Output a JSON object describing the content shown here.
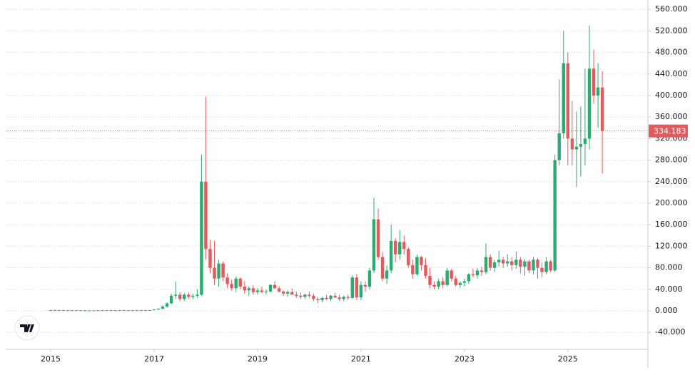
{
  "chart_data": {
    "type": "candlestick",
    "categories": [
      "2015",
      null,
      null,
      null,
      null,
      null,
      null,
      null,
      null,
      null,
      null,
      null,
      null,
      null,
      null,
      null,
      null,
      null,
      null,
      null,
      null,
      null,
      null,
      null,
      "2017",
      null,
      null,
      null,
      null,
      null,
      null,
      null,
      null,
      null,
      null,
      null,
      null,
      null,
      null,
      null,
      null,
      null,
      null,
      null,
      null,
      null,
      null,
      null,
      "2019",
      null,
      null,
      null,
      null,
      null,
      null,
      null,
      null,
      null,
      null,
      null,
      null,
      null,
      null,
      null,
      null,
      null,
      null,
      null,
      null,
      null,
      null,
      null,
      "2021",
      null,
      null,
      null,
      null,
      null,
      null,
      null,
      null,
      null,
      null,
      null,
      null,
      null,
      null,
      null,
      null,
      null,
      null,
      null,
      null,
      null,
      null,
      null,
      "2023",
      null,
      null,
      null,
      null,
      null,
      null,
      null,
      null,
      null,
      null,
      null,
      null,
      null,
      null,
      null,
      null,
      null,
      null,
      null,
      null,
      null,
      null,
      null,
      "2025",
      null,
      null,
      null,
      null,
      null,
      null,
      null,
      null
    ],
    "values": [
      [
        1,
        2,
        0.5,
        1.2
      ],
      [
        1.2,
        2,
        0.8,
        1
      ],
      [
        1,
        1.8,
        0.6,
        1.3
      ],
      [
        1.3,
        2,
        0.9,
        1
      ],
      [
        1,
        1.5,
        0.5,
        0.8
      ],
      [
        0.8,
        1.5,
        0.4,
        1
      ],
      [
        1,
        1.6,
        0.5,
        0.7
      ],
      [
        0.7,
        1.2,
        0.3,
        0.9
      ],
      [
        0.9,
        1.4,
        0.5,
        0.6
      ],
      [
        0.6,
        1.2,
        0.3,
        0.8
      ],
      [
        0.8,
        1.3,
        0.4,
        0.7
      ],
      [
        0.7,
        1.2,
        0.3,
        1
      ],
      [
        1,
        1.5,
        0.5,
        0.8
      ],
      [
        0.8,
        1.3,
        0.4,
        1.1
      ],
      [
        1.1,
        1.6,
        0.6,
        0.9
      ],
      [
        0.9,
        1.4,
        0.5,
        1
      ],
      [
        1,
        1.6,
        0.6,
        1.2
      ],
      [
        1.2,
        1.8,
        0.7,
        1
      ],
      [
        1,
        1.5,
        0.6,
        0.9
      ],
      [
        0.9,
        1.4,
        0.5,
        1.1
      ],
      [
        1.1,
        1.6,
        0.7,
        1
      ],
      [
        1,
        1.5,
        0.6,
        1.2
      ],
      [
        1.2,
        1.8,
        0.8,
        1
      ],
      [
        1,
        1.6,
        0.6,
        1.4
      ],
      [
        1.4,
        3,
        1,
        2.5
      ],
      [
        2.5,
        5,
        2,
        4
      ],
      [
        4,
        10,
        3,
        8
      ],
      [
        8,
        16,
        6,
        14
      ],
      [
        14,
        32,
        12,
        28
      ],
      [
        28,
        55,
        22,
        30
      ],
      [
        30,
        35,
        18,
        22
      ],
      [
        22,
        33,
        18,
        30
      ],
      [
        30,
        34,
        22,
        26
      ],
      [
        26,
        32,
        22,
        28
      ],
      [
        28,
        40,
        24,
        30
      ],
      [
        30,
        290,
        28,
        240
      ],
      [
        240,
        398,
        95,
        115
      ],
      [
        115,
        132,
        70,
        80
      ],
      [
        80,
        130,
        48,
        60
      ],
      [
        60,
        95,
        45,
        88
      ],
      [
        88,
        92,
        55,
        62
      ],
      [
        62,
        70,
        42,
        50
      ],
      [
        50,
        58,
        38,
        42
      ],
      [
        42,
        64,
        35,
        60
      ],
      [
        60,
        62,
        40,
        45
      ],
      [
        45,
        55,
        32,
        38
      ],
      [
        38,
        45,
        28,
        42
      ],
      [
        42,
        48,
        30,
        35
      ],
      [
        35,
        42,
        30,
        38
      ],
      [
        38,
        45,
        33,
        35
      ],
      [
        35,
        40,
        30,
        36
      ],
      [
        36,
        50,
        34,
        48
      ],
      [
        48,
        55,
        40,
        42
      ],
      [
        42,
        46,
        34,
        36
      ],
      [
        36,
        38,
        28,
        32
      ],
      [
        32,
        38,
        26,
        35
      ],
      [
        35,
        42,
        30,
        30
      ],
      [
        30,
        36,
        24,
        28
      ],
      [
        28,
        34,
        22,
        26
      ],
      [
        26,
        32,
        22,
        30
      ],
      [
        30,
        36,
        24,
        28
      ],
      [
        28,
        32,
        18,
        22
      ],
      [
        22,
        26,
        14,
        20
      ],
      [
        20,
        26,
        16,
        24
      ],
      [
        24,
        30,
        20,
        22
      ],
      [
        22,
        30,
        18,
        28
      ],
      [
        28,
        34,
        24,
        25
      ],
      [
        25,
        30,
        18,
        22
      ],
      [
        22,
        28,
        18,
        26
      ],
      [
        26,
        30,
        20,
        24
      ],
      [
        24,
        66,
        22,
        62
      ],
      [
        62,
        68,
        20,
        25
      ],
      [
        25,
        55,
        20,
        48
      ],
      [
        48,
        55,
        35,
        45
      ],
      [
        45,
        80,
        40,
        75
      ],
      [
        75,
        210,
        70,
        170
      ],
      [
        170,
        190,
        95,
        100
      ],
      [
        100,
        110,
        55,
        60
      ],
      [
        60,
        85,
        50,
        75
      ],
      [
        75,
        160,
        70,
        130
      ],
      [
        130,
        135,
        90,
        105
      ],
      [
        105,
        150,
        95,
        128
      ],
      [
        128,
        140,
        105,
        115
      ],
      [
        115,
        118,
        80,
        85
      ],
      [
        85,
        95,
        60,
        68
      ],
      [
        68,
        105,
        65,
        100
      ],
      [
        100,
        102,
        75,
        85
      ],
      [
        85,
        98,
        60,
        65
      ],
      [
        65,
        80,
        42,
        48
      ],
      [
        48,
        55,
        40,
        45
      ],
      [
        45,
        60,
        40,
        55
      ],
      [
        55,
        62,
        42,
        48
      ],
      [
        48,
        80,
        45,
        75
      ],
      [
        75,
        78,
        55,
        60
      ],
      [
        60,
        65,
        45,
        48
      ],
      [
        48,
        55,
        42,
        52
      ],
      [
        52,
        60,
        45,
        55
      ],
      [
        55,
        70,
        50,
        68
      ],
      [
        68,
        78,
        62,
        66
      ],
      [
        66,
        80,
        60,
        75
      ],
      [
        75,
        82,
        65,
        72
      ],
      [
        72,
        125,
        68,
        100
      ],
      [
        100,
        105,
        75,
        80
      ],
      [
        80,
        95,
        72,
        90
      ],
      [
        90,
        112,
        82,
        95
      ],
      [
        95,
        100,
        80,
        88
      ],
      [
        88,
        105,
        82,
        92
      ],
      [
        92,
        100,
        75,
        85
      ],
      [
        85,
        110,
        78,
        95
      ],
      [
        95,
        100,
        70,
        82
      ],
      [
        82,
        96,
        65,
        92
      ],
      [
        92,
        95,
        70,
        75
      ],
      [
        75,
        100,
        68,
        95
      ],
      [
        95,
        98,
        60,
        80
      ],
      [
        80,
        90,
        62,
        72
      ],
      [
        72,
        100,
        68,
        92
      ],
      [
        92,
        95,
        72,
        75
      ],
      [
        75,
        290,
        72,
        280
      ],
      [
        280,
        430,
        270,
        330
      ],
      [
        330,
        520,
        320,
        460
      ],
      [
        460,
        480,
        270,
        320
      ],
      [
        320,
        390,
        270,
        300
      ],
      [
        300,
        370,
        230,
        305
      ],
      [
        305,
        380,
        250,
        310
      ],
      [
        310,
        450,
        270,
        320
      ],
      [
        320,
        530,
        300,
        450
      ],
      [
        450,
        485,
        385,
        400
      ],
      [
        400,
        460,
        340,
        415
      ],
      [
        415,
        445,
        255,
        334.183
      ]
    ],
    "up_color": "#2bab72",
    "down_color": "#e35a5d",
    "ylim": [
      -71.5,
      577.5
    ],
    "yticks": [
      {
        "value": -40,
        "label": "-40.000"
      },
      {
        "value": 0,
        "label": "0.000"
      },
      {
        "value": 40,
        "label": "40.000"
      },
      {
        "value": 80,
        "label": "80.000"
      },
      {
        "value": 120,
        "label": "120.000"
      },
      {
        "value": 160,
        "label": "160.000"
      },
      {
        "value": 200,
        "label": "200.000"
      },
      {
        "value": 240,
        "label": "240.000"
      },
      {
        "value": 280,
        "label": "280.000"
      },
      {
        "value": 320,
        "label": "320.000"
      },
      {
        "value": 360,
        "label": "360.000"
      },
      {
        "value": 400,
        "label": "400.000"
      },
      {
        "value": 440,
        "label": "440.000"
      },
      {
        "value": 480,
        "label": "480.000"
      },
      {
        "value": 520,
        "label": "520.000"
      },
      {
        "value": 560,
        "label": "560.000"
      }
    ],
    "grid": true
  }
}
